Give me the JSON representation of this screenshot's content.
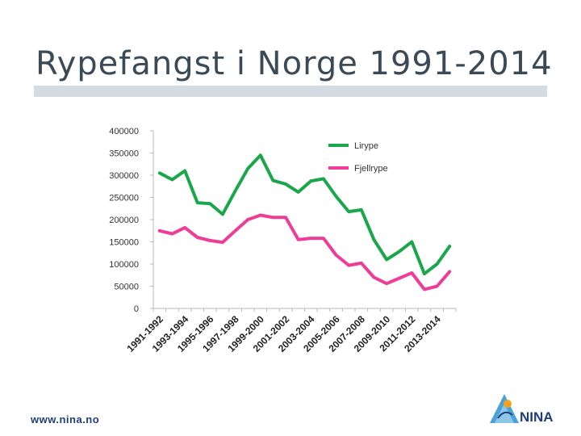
{
  "slide": {
    "title": "Rypefangst i Norge 1991-2014",
    "footer_url": "www.nina.no",
    "logo_text": "NINA"
  },
  "chart_data": {
    "type": "line",
    "title": "",
    "xlabel": "",
    "ylabel": "",
    "ylim": [
      0,
      400000
    ],
    "yticks": [
      0,
      50000,
      100000,
      150000,
      200000,
      250000,
      300000,
      350000,
      400000
    ],
    "ytick_labels": [
      "0",
      "50000",
      "100000",
      "150000",
      "200000",
      "250000",
      "300000",
      "350000",
      "400000"
    ],
    "categories": [
      "1991-1992",
      "1992-1993",
      "1993-1994",
      "1994-1995",
      "1995-1996",
      "1996-1997",
      "1997-1998",
      "1998-1999",
      "1999-2000",
      "2000-2001",
      "2001-2002",
      "2002-2003",
      "2003-2004",
      "2004-2005",
      "2005-2006",
      "2006-2007",
      "2007-2008",
      "2008-2009",
      "2009-2010",
      "2010-2011",
      "2011-2012",
      "2012-2013",
      "2013-2014",
      "2014-2015"
    ],
    "x_tick_labels": [
      "1991-1992",
      "1993-1994",
      "1995-1996",
      "1997-1998",
      "1999-2000",
      "2001-2002",
      "2003-2004",
      "2005-2006",
      "2007-2008",
      "2009-2010",
      "2011-2012",
      "2013-2014"
    ],
    "legend_position": "top-right",
    "grid": false,
    "series": [
      {
        "name": "Lirype",
        "color": "#1aa64a",
        "values": [
          305000,
          290000,
          310000,
          238000,
          236000,
          212000,
          265000,
          315000,
          345000,
          288000,
          280000,
          262000,
          287000,
          292000,
          252000,
          218000,
          222000,
          155000,
          110000,
          128000,
          150000,
          78000,
          100000,
          140000
        ]
      },
      {
        "name": "Fjellrype",
        "color": "#ee3d96",
        "values": [
          175000,
          168000,
          182000,
          160000,
          153000,
          149000,
          175000,
          200000,
          210000,
          205000,
          205000,
          155000,
          158000,
          158000,
          120000,
          97000,
          102000,
          70000,
          56000,
          68000,
          80000,
          43000,
          50000,
          83000
        ]
      }
    ]
  }
}
